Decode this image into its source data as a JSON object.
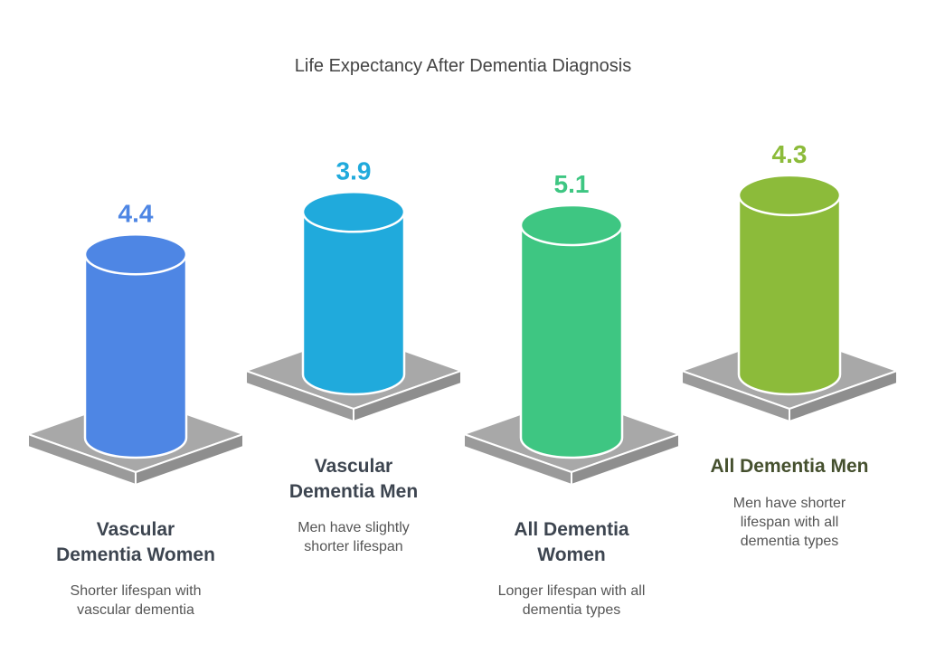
{
  "chart_data": {
    "type": "bar",
    "title": "Life Expectancy After Dementia Diagnosis",
    "categories": [
      "Vascular Dementia Women",
      "Vascular Dementia Men",
      "All Dementia Women",
      "All Dementia Men"
    ],
    "values": [
      4.4,
      3.9,
      5.1,
      4.3
    ],
    "value_labels": [
      "4.4",
      "3.9",
      "5.1",
      "4.3"
    ],
    "label_lines": [
      [
        "Vascular",
        "Dementia Women"
      ],
      [
        "Vascular",
        "Dementia Men"
      ],
      [
        "All Dementia",
        "Women"
      ],
      [
        "All Dementia Men"
      ]
    ],
    "descriptions": [
      [
        "Shorter lifespan with",
        "vascular dementia"
      ],
      [
        "Men have slightly",
        "shorter lifespan"
      ],
      [
        "Longer lifespan with all",
        "dementia types"
      ],
      [
        "Men have shorter",
        "lifespan with all",
        "dementia types"
      ]
    ],
    "colors": [
      "#4e86e4",
      "#20aadc",
      "#3ec682",
      "#8cbb3a"
    ],
    "label_colors": [
      "#3d4550",
      "#3d4550",
      "#3d4550",
      "#45502e"
    ]
  }
}
